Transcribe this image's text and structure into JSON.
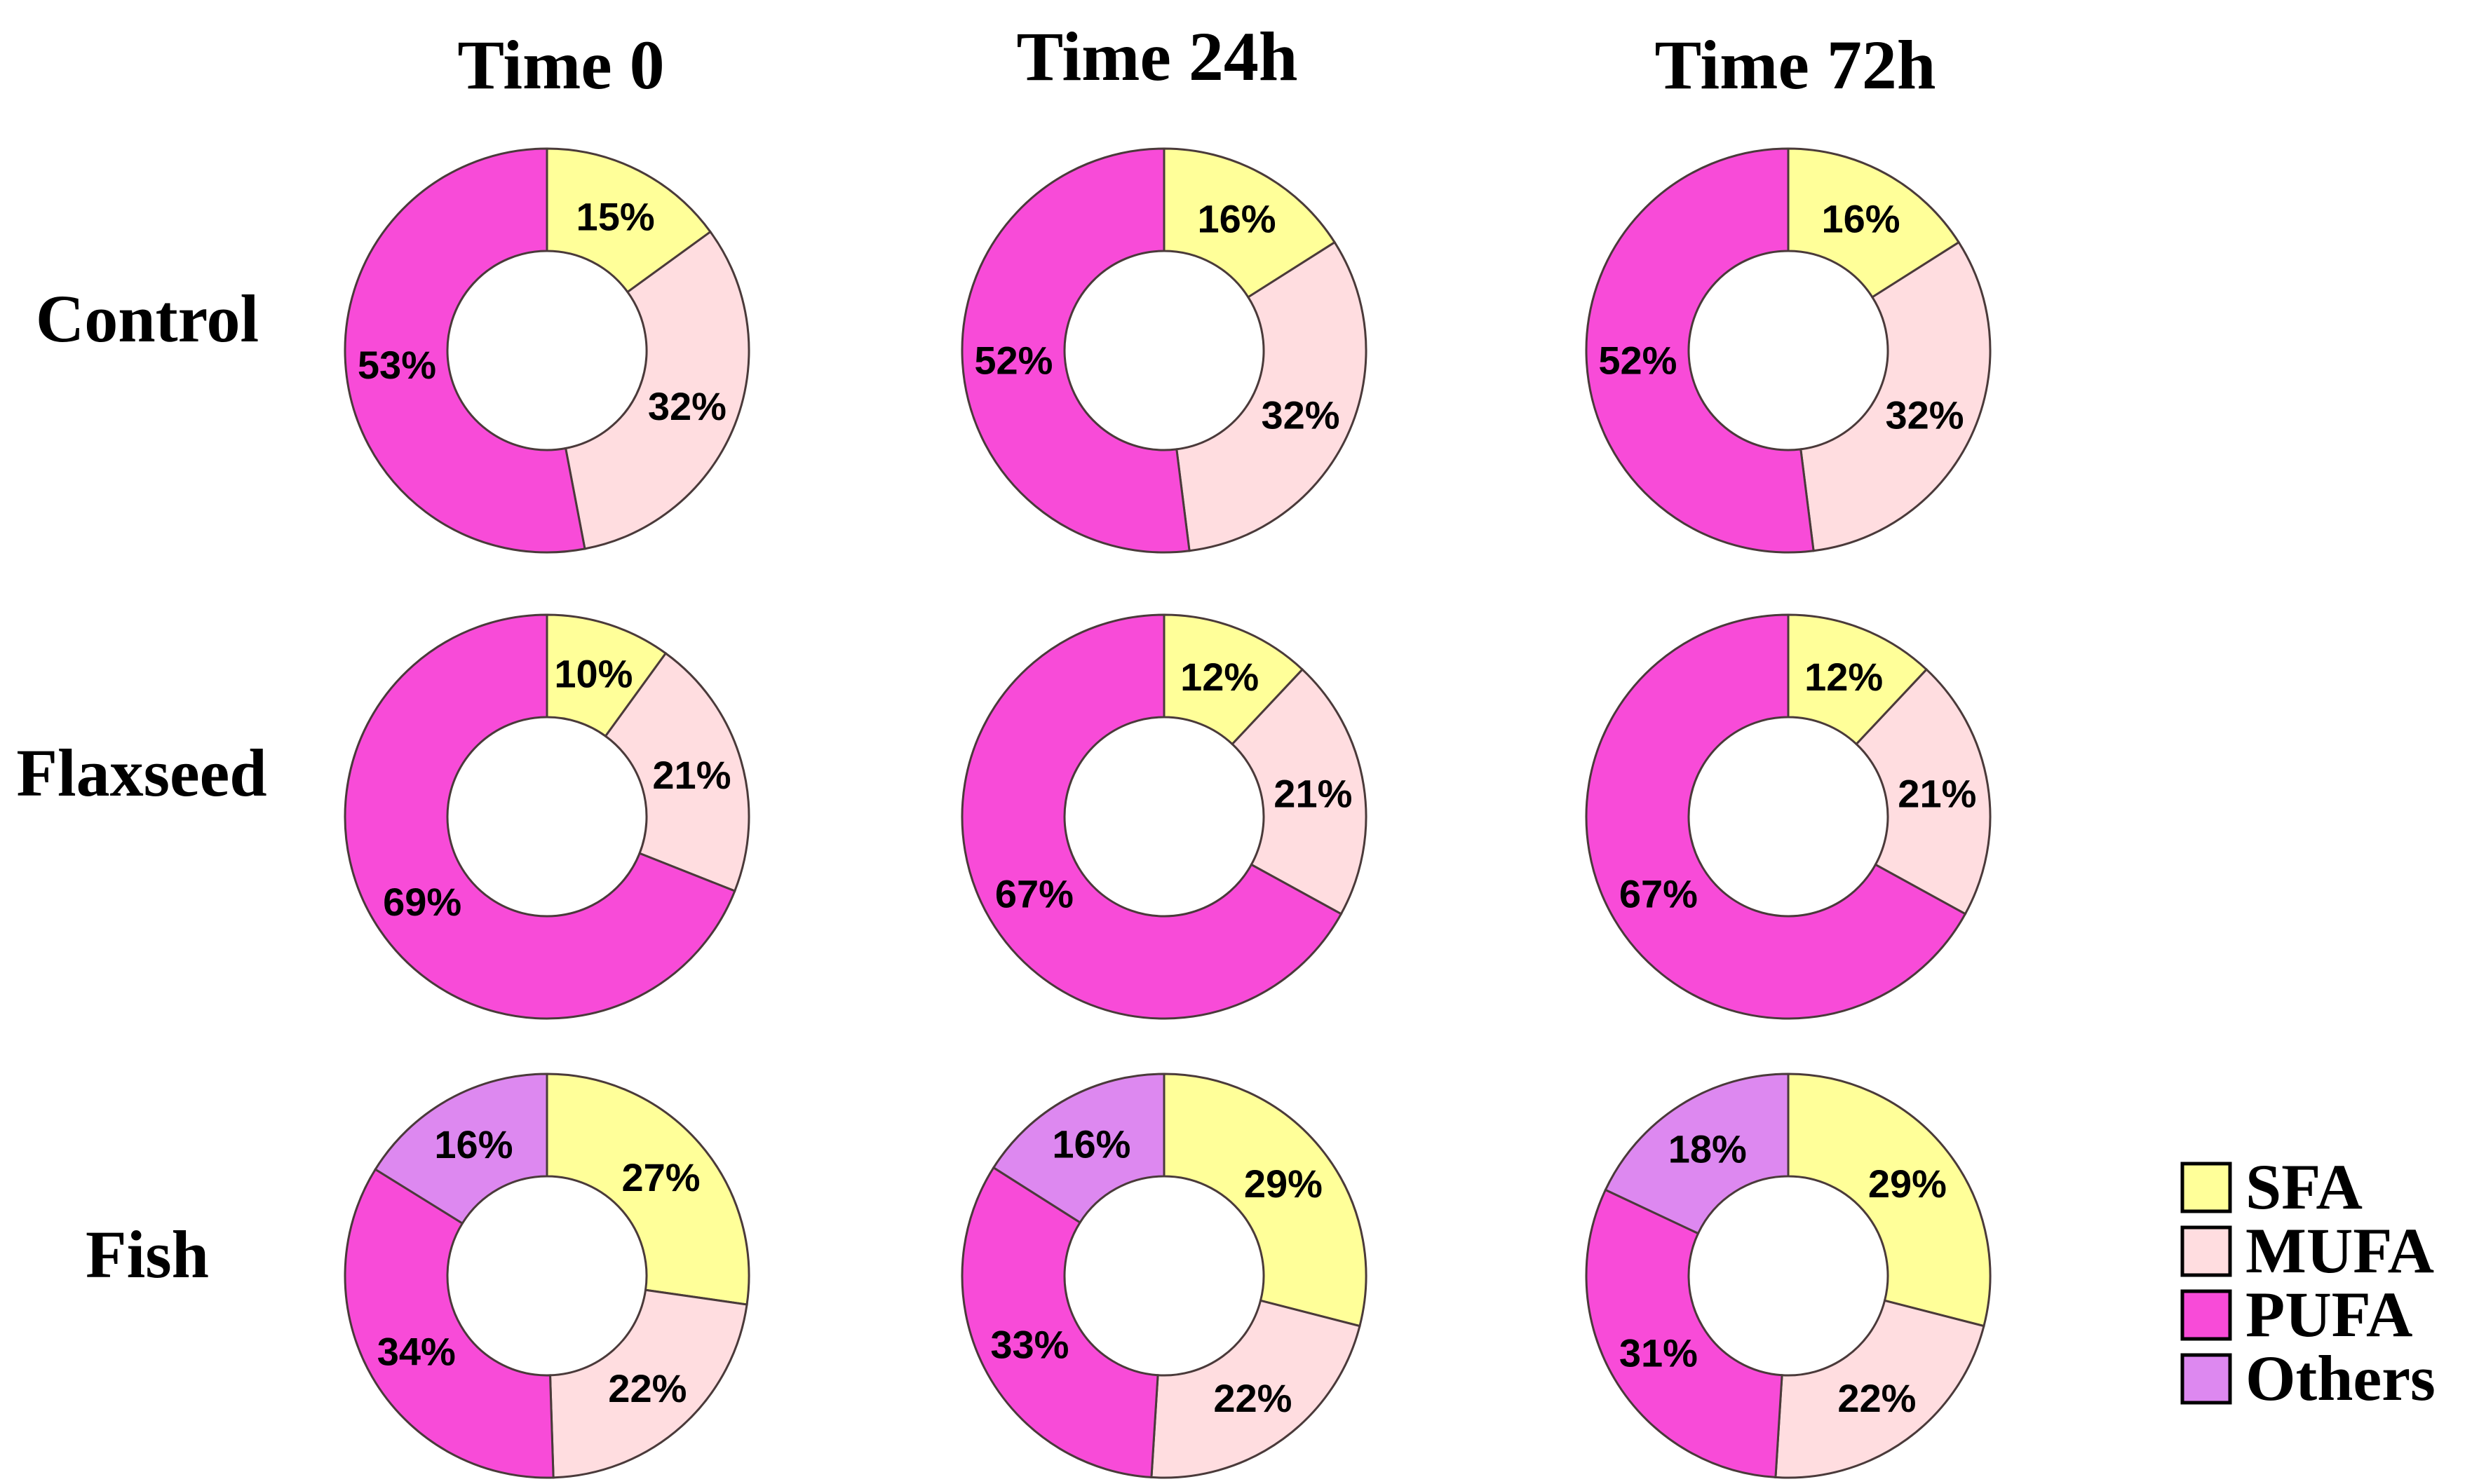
{
  "chart_data": {
    "type": "pie",
    "subtype": "donut",
    "columns": [
      "Time 0",
      "Time 24h",
      "Time 72h"
    ],
    "rows": [
      "Control",
      "Flaxseed",
      "Fish"
    ],
    "legend": {
      "placement": "bottom-right",
      "items": [
        {
          "name": "SFA",
          "color": "#FFFF99"
        },
        {
          "name": "MUFA",
          "color": "#FFDDE0"
        },
        {
          "name": "PUFA",
          "color": "#F84BD8"
        },
        {
          "name": "Others",
          "color": "#DD88F0"
        }
      ]
    },
    "panels": [
      {
        "row": "Control",
        "column": "Time 0",
        "slices": [
          {
            "category": "SFA",
            "value": 15,
            "label": "15%"
          },
          {
            "category": "MUFA",
            "value": 32,
            "label": "32%"
          },
          {
            "category": "PUFA",
            "value": 53,
            "label": "53%"
          }
        ]
      },
      {
        "row": "Control",
        "column": "Time 24h",
        "slices": [
          {
            "category": "SFA",
            "value": 16,
            "label": "16%"
          },
          {
            "category": "MUFA",
            "value": 32,
            "label": "32%"
          },
          {
            "category": "PUFA",
            "value": 52,
            "label": "52%"
          }
        ]
      },
      {
        "row": "Control",
        "column": "Time 72h",
        "slices": [
          {
            "category": "SFA",
            "value": 16,
            "label": "16%"
          },
          {
            "category": "MUFA",
            "value": 32,
            "label": "32%"
          },
          {
            "category": "PUFA",
            "value": 52,
            "label": "52%"
          }
        ]
      },
      {
        "row": "Flaxseed",
        "column": "Time 0",
        "slices": [
          {
            "category": "SFA",
            "value": 10,
            "label": "10%"
          },
          {
            "category": "MUFA",
            "value": 21,
            "label": "21%"
          },
          {
            "category": "PUFA",
            "value": 69,
            "label": "69%"
          }
        ]
      },
      {
        "row": "Flaxseed",
        "column": "Time 24h",
        "slices": [
          {
            "category": "SFA",
            "value": 12,
            "label": "12%"
          },
          {
            "category": "MUFA",
            "value": 21,
            "label": "21%"
          },
          {
            "category": "PUFA",
            "value": 67,
            "label": "67%"
          }
        ]
      },
      {
        "row": "Flaxseed",
        "column": "Time 72h",
        "slices": [
          {
            "category": "SFA",
            "value": 12,
            "label": "12%"
          },
          {
            "category": "MUFA",
            "value": 21,
            "label": "21%"
          },
          {
            "category": "PUFA",
            "value": 67,
            "label": "67%"
          }
        ]
      },
      {
        "row": "Fish",
        "column": "Time 0",
        "slices": [
          {
            "category": "SFA",
            "value": 27,
            "label": "27%"
          },
          {
            "category": "MUFA",
            "value": 22,
            "label": "22%"
          },
          {
            "category": "PUFA",
            "value": 34,
            "label": "34%"
          },
          {
            "category": "Others",
            "value": 16,
            "label": "16%"
          }
        ]
      },
      {
        "row": "Fish",
        "column": "Time 24h",
        "slices": [
          {
            "category": "SFA",
            "value": 29,
            "label": "29%"
          },
          {
            "category": "MUFA",
            "value": 22,
            "label": "22%"
          },
          {
            "category": "PUFA",
            "value": 33,
            "label": "33%"
          },
          {
            "category": "Others",
            "value": 16,
            "label": "16%"
          }
        ]
      },
      {
        "row": "Fish",
        "column": "Time 72h",
        "slices": [
          {
            "category": "SFA",
            "value": 29,
            "label": "29%"
          },
          {
            "category": "MUFA",
            "value": 22,
            "label": "22%"
          },
          {
            "category": "PUFA",
            "value": 31,
            "label": "31%"
          },
          {
            "category": "Others",
            "value": 18,
            "label": "18%"
          }
        ]
      }
    ]
  }
}
